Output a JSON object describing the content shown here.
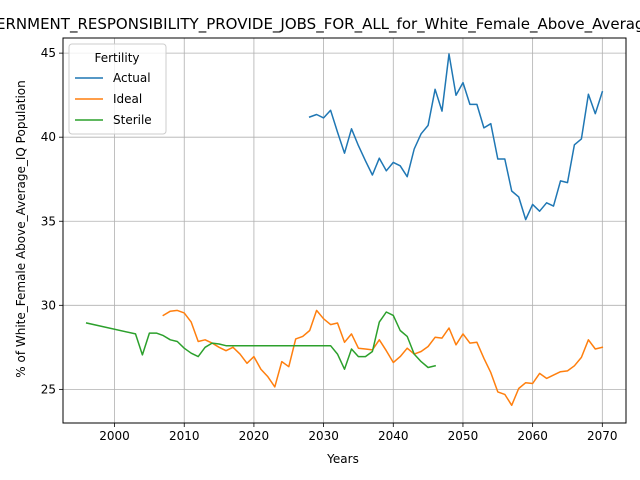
{
  "chart_data": {
    "type": "line",
    "title": "GOVERNMENT_RESPONSIBILITY_PROVIDE_JOBS_FOR_ALL_for_White_Female_Above_Average_IQ",
    "xlabel": "Years",
    "ylabel": "% of White_Female Above_Average_IQ Population",
    "xlim": [
      1992.6,
      2073.4
    ],
    "ylim": [
      23.0,
      45.9
    ],
    "xticks": [
      2000,
      2010,
      2020,
      2030,
      2040,
      2050,
      2060,
      2070
    ],
    "yticks": [
      25,
      30,
      35,
      40,
      45
    ],
    "grid": true,
    "legend": {
      "title": "Fertility",
      "placement": "upper-left"
    },
    "series": [
      {
        "name": "Actual",
        "color": "#1f77b4",
        "x": [
          2028,
          2029,
          2030,
          2031,
          2032,
          2033,
          2034,
          2035,
          2036,
          2037,
          2038,
          2039,
          2040,
          2041,
          2042,
          2043,
          2044,
          2045,
          2046,
          2047,
          2048,
          2049,
          2050,
          2051,
          2052,
          2053,
          2054,
          2055,
          2056,
          2057,
          2058,
          2059,
          2060,
          2061,
          2062,
          2063,
          2064,
          2065,
          2066,
          2067,
          2068,
          2069,
          2070
        ],
        "y": [
          41.2,
          41.35,
          41.15,
          41.6,
          40.3,
          39.05,
          40.5,
          39.5,
          38.6,
          37.75,
          38.75,
          38.0,
          38.5,
          38.3,
          37.65,
          39.3,
          40.2,
          40.7,
          42.85,
          41.55,
          44.95,
          42.5,
          43.25,
          41.95,
          41.95,
          40.55,
          40.8,
          38.7,
          38.7,
          36.8,
          36.45,
          35.1,
          36.0,
          35.6,
          36.1,
          35.9,
          37.4,
          37.3,
          39.55,
          39.9,
          42.55,
          41.4,
          42.7
        ]
      },
      {
        "name": "Ideal",
        "color": "#ff7f0e",
        "x": [
          2007,
          2008,
          2009,
          2010,
          2011,
          2012,
          2013,
          2014,
          2015,
          2016,
          2017,
          2018,
          2019,
          2020,
          2021,
          2022,
          2023,
          2024,
          2025,
          2026,
          2027,
          2028,
          2029,
          2030,
          2031,
          2032,
          2033,
          2034,
          2035,
          2036,
          2037,
          2038,
          2039,
          2040,
          2041,
          2042,
          2043,
          2044,
          2045,
          2046,
          2047,
          2048,
          2049,
          2050,
          2051,
          2052,
          2053,
          2054,
          2055,
          2056,
          2057,
          2058,
          2059,
          2060,
          2061,
          2062,
          2063,
          2064,
          2065,
          2066,
          2067,
          2068,
          2069,
          2070
        ],
        "y": [
          29.4,
          29.65,
          29.7,
          29.55,
          29.0,
          27.85,
          27.95,
          27.75,
          27.5,
          27.3,
          27.5,
          27.1,
          26.55,
          26.95,
          26.2,
          25.75,
          25.15,
          26.65,
          26.35,
          28.0,
          28.15,
          28.5,
          29.7,
          29.2,
          28.85,
          28.95,
          27.8,
          28.3,
          27.45,
          27.4,
          27.35,
          27.95,
          27.3,
          26.6,
          26.95,
          27.45,
          27.1,
          27.25,
          27.55,
          28.1,
          28.05,
          28.65,
          27.65,
          28.3,
          27.75,
          27.8,
          26.85,
          26.0,
          24.85,
          24.7,
          24.05,
          25.05,
          25.4,
          25.35,
          25.95,
          25.65,
          25.85,
          26.05,
          26.1,
          26.4,
          26.9,
          27.95,
          27.4,
          27.5
        ]
      },
      {
        "name": "Sterile",
        "color": "#2ca02c",
        "x": [
          1996,
          2003,
          2004,
          2005,
          2006,
          2007,
          2008,
          2009,
          2010,
          2011,
          2012,
          2013,
          2014,
          2015,
          2016,
          2017,
          2018,
          2019,
          2020,
          2021,
          2022,
          2023,
          2024,
          2025,
          2026,
          2027,
          2028,
          2029,
          2030,
          2031,
          2032,
          2033,
          2034,
          2035,
          2036,
          2037,
          2038,
          2039,
          2040,
          2041,
          2042,
          2043,
          2044,
          2045,
          2046
        ],
        "y": [
          28.95,
          28.3,
          27.05,
          28.35,
          28.35,
          28.2,
          27.95,
          27.85,
          27.45,
          27.15,
          26.95,
          27.5,
          27.75,
          27.7,
          27.6,
          27.6,
          27.6,
          27.6,
          27.6,
          27.6,
          27.6,
          27.6,
          27.6,
          27.6,
          27.6,
          27.6,
          27.6,
          27.6,
          27.6,
          27.6,
          27.1,
          26.2,
          27.4,
          26.95,
          26.95,
          27.25,
          29.0,
          29.6,
          29.4,
          28.5,
          28.15,
          27.1,
          26.65,
          26.3,
          26.4
        ]
      }
    ]
  }
}
